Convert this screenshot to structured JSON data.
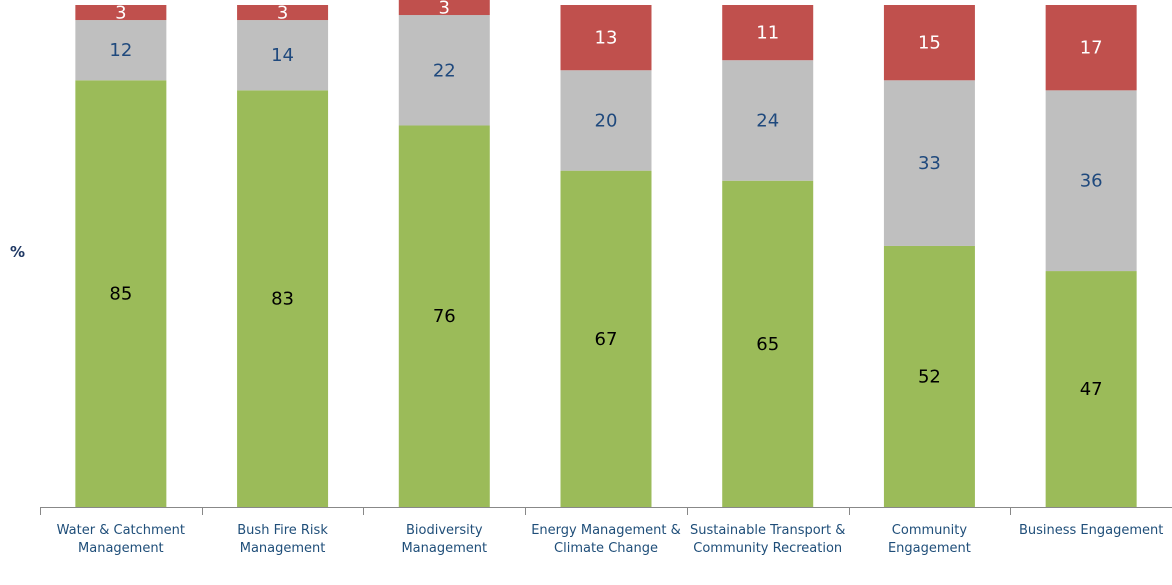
{
  "chart_data": {
    "type": "stacked-bar",
    "y_label": "%",
    "categories": [
      "Water & Catchment Management",
      "Bush Fire Risk Management",
      "Biodiversity Management",
      "Energy Management & Climate Change",
      "Sustainable Transport & Community Recreation",
      "Community Engagement",
      "Business Engagement"
    ],
    "series": [
      {
        "color": "#9bbb59",
        "label_color": "#000000",
        "values": [
          85,
          83,
          76,
          67,
          65,
          52,
          47
        ]
      },
      {
        "color": "#bfbfbf",
        "label_color": "#1f497d",
        "values": [
          12,
          14,
          22,
          20,
          24,
          33,
          36
        ]
      },
      {
        "color": "#c0504d",
        "label_color": "#ffffff",
        "values": [
          3,
          3,
          3,
          13,
          11,
          15,
          17
        ]
      }
    ],
    "ylim": [
      0,
      100
    ]
  }
}
